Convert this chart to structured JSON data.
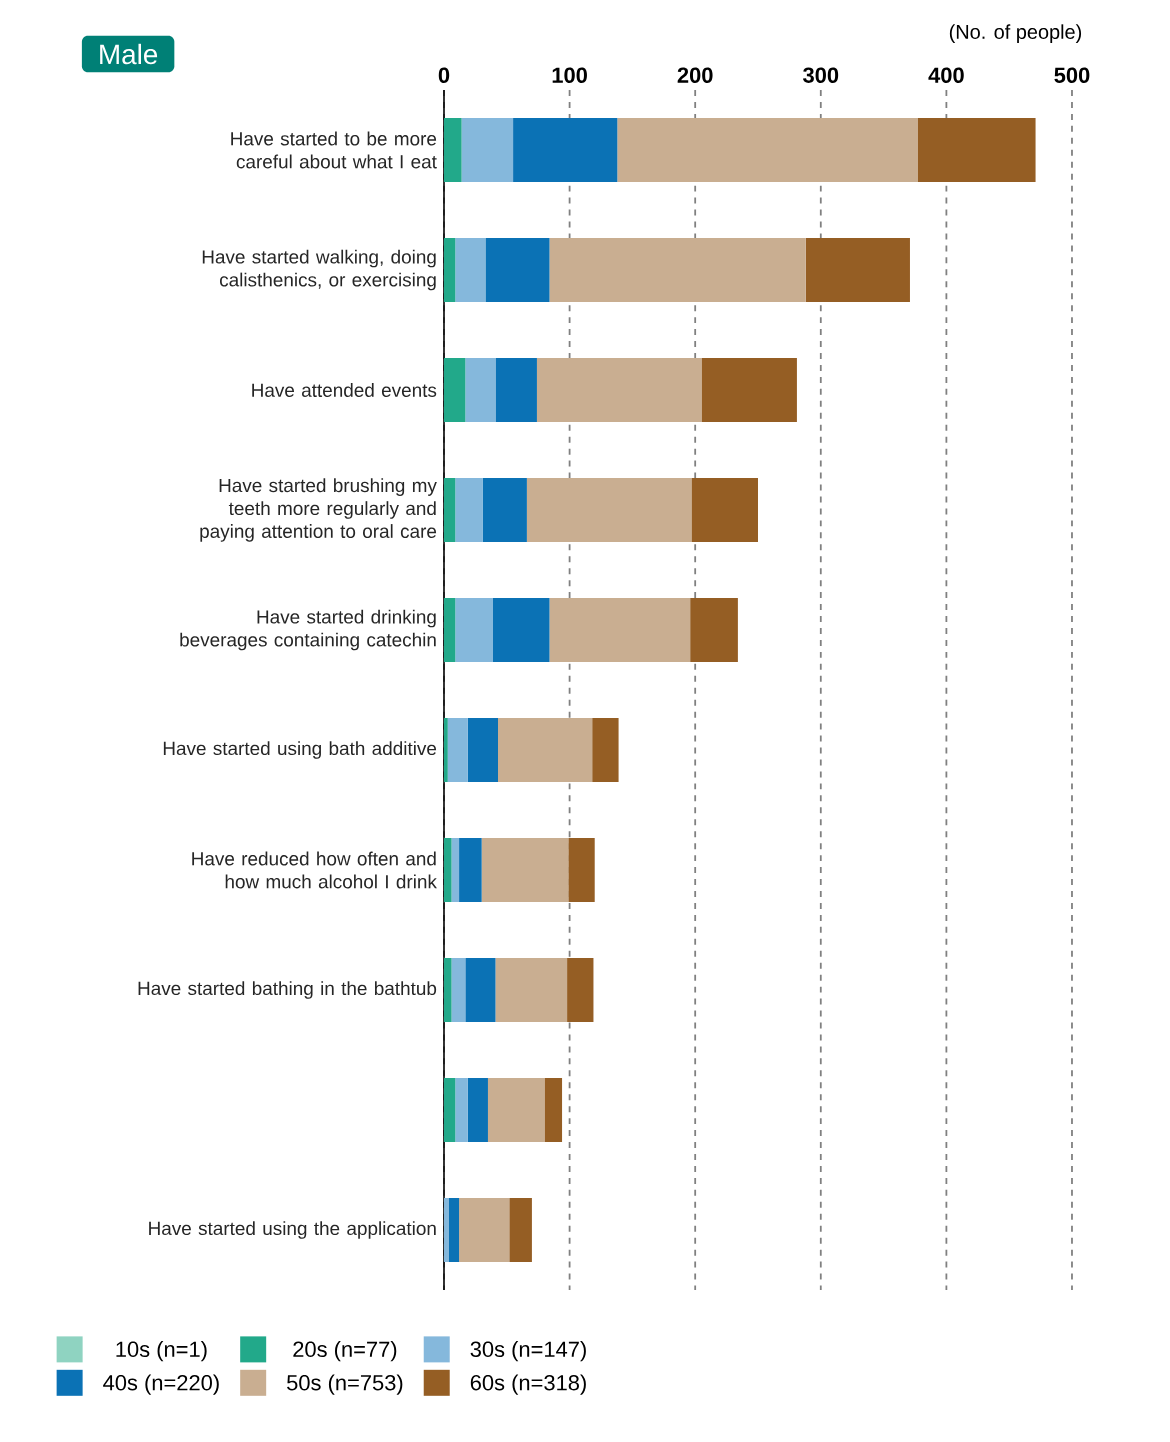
{
  "chart_data": {
    "type": "bar",
    "orientation": "horizontal",
    "stacked": true,
    "title": "Male",
    "xlabel": "(No. of people)",
    "categories": [
      "Have started to be more careful about what I eat",
      "Have started walking, doing calisthenics, or exercising",
      "Have attended events",
      "Have started brushing my teeth more regularly and paying attention to oral care",
      "Have started drinking beverages containing catechin",
      "Have started using bath additive",
      "Have reduced how often and how much alcohol I drink",
      "Have started bathing in the bathtub",
      null,
      "Have started using the application"
    ],
    "series": [
      {
        "name": "10s (n=1)",
        "color": "#8fd3c1",
        "values": [
          0,
          0,
          0,
          0,
          0,
          0,
          0,
          0,
          0,
          0
        ]
      },
      {
        "name": "20s (n=77)",
        "color": "#22a98a",
        "values": [
          14,
          9,
          17,
          9,
          9,
          3,
          6,
          6,
          9,
          0
        ]
      },
      {
        "name": "30s (n=147)",
        "color": "#85b8dc",
        "values": [
          41,
          24,
          24,
          22,
          30,
          16,
          6,
          11,
          10,
          4
        ]
      },
      {
        "name": "40s (n=220)",
        "color": "#0b72b5",
        "values": [
          83,
          51,
          33,
          35,
          45,
          24,
          18,
          24,
          16,
          8
        ]
      },
      {
        "name": "50s (n=753)",
        "color": "#c9ae91",
        "values": [
          239,
          204,
          131,
          131,
          112,
          75,
          69,
          57,
          45,
          40
        ]
      },
      {
        "name": "60s (n=318)",
        "color": "#955e24",
        "values": [
          94,
          83,
          76,
          53,
          38,
          21,
          21,
          21,
          14,
          18
        ]
      }
    ],
    "xlim": [
      0,
      500
    ],
    "xticks": [
      0,
      100,
      200,
      300,
      400,
      500
    ],
    "grid": "x",
    "legend": "bottom"
  }
}
